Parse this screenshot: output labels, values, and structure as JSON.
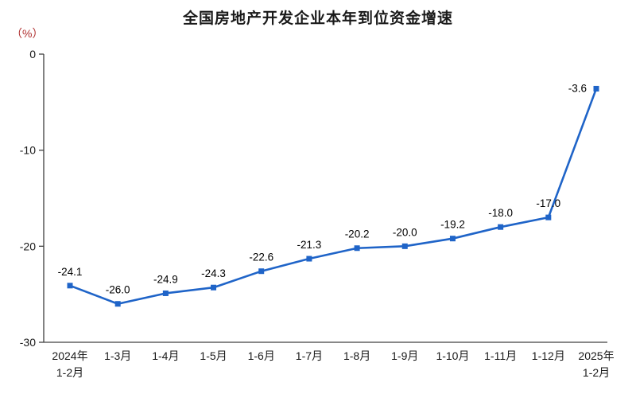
{
  "chart_data": {
    "type": "line",
    "title": "全国房地产开发企业本年到位资金增速",
    "unit_label": "（%）",
    "categories": [
      "2024年\n1-2月",
      "1-3月",
      "1-4月",
      "1-5月",
      "1-6月",
      "1-7月",
      "1-8月",
      "1-9月",
      "1-10月",
      "1-11月",
      "1-12月",
      "2025年\n1-2月"
    ],
    "values": [
      -24.1,
      -26.0,
      -24.9,
      -24.3,
      -22.6,
      -21.3,
      -20.2,
      -20.0,
      -19.2,
      -18.0,
      -17.0,
      -3.6
    ],
    "point_labels": [
      "-24.1",
      "-26.0",
      "-24.9",
      "-24.3",
      "-22.6",
      "-21.3",
      "-20.2",
      "-20.0",
      "-19.2",
      "-18.0",
      "-17.0",
      "-3.6"
    ],
    "yticks": [
      0,
      -10,
      -20,
      -30
    ],
    "ytick_labels": [
      "0",
      "-10",
      "-20",
      "-30"
    ],
    "ylim": [
      -30,
      0
    ],
    "xlabel": "",
    "ylabel": "%",
    "grid": false,
    "legend": "none",
    "line_color": "#1f64c8",
    "marker_color": "#1f64c8",
    "axis_color": "#404040",
    "label_color": "#000000"
  }
}
